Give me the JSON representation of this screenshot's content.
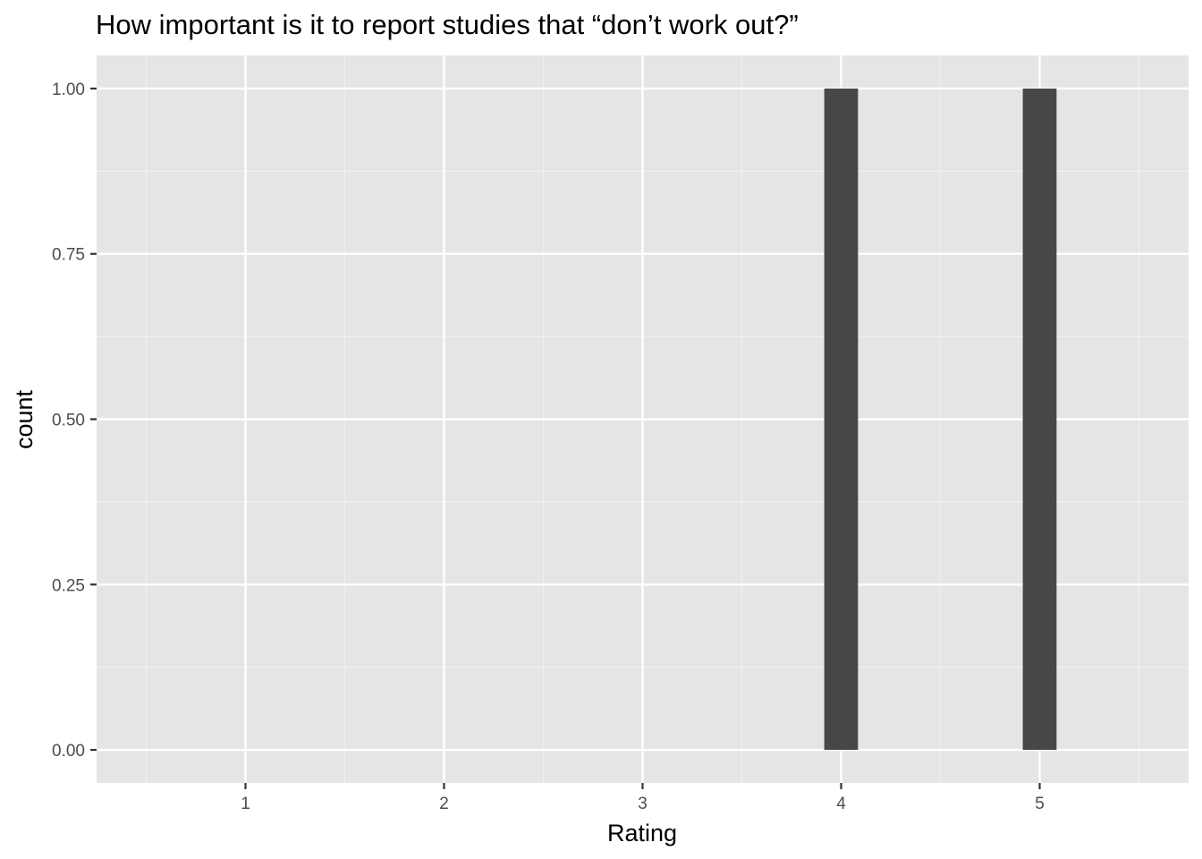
{
  "chart_data": {
    "type": "bar",
    "title": "How important is it to report studies that “don’t work out?”",
    "xlabel": "Rating",
    "ylabel": "count",
    "x_ticks": [
      1,
      2,
      3,
      4,
      5
    ],
    "x_tick_labels": [
      "1",
      "2",
      "3",
      "4",
      "5"
    ],
    "y_ticks": [
      0,
      0.25,
      0.5,
      0.75,
      1
    ],
    "y_tick_labels": [
      "0.00",
      "0.25",
      "0.50",
      "0.75",
      "1.00"
    ],
    "xlim": [
      0.25,
      5.75
    ],
    "ylim": [
      -0.05,
      1.05
    ],
    "bars": [
      {
        "x": 4,
        "count": 1
      },
      {
        "x": 5,
        "count": 1
      }
    ],
    "bar_width": 0.17,
    "grid": true,
    "legend": "none",
    "colors": {
      "panel_background": "#e5e5e5",
      "grid_major": "#ffffff",
      "grid_minor": "#f0f0f0",
      "bar_fill": "#474747",
      "axis_text": "#4d4d4d",
      "title_text": "#000000"
    }
  }
}
